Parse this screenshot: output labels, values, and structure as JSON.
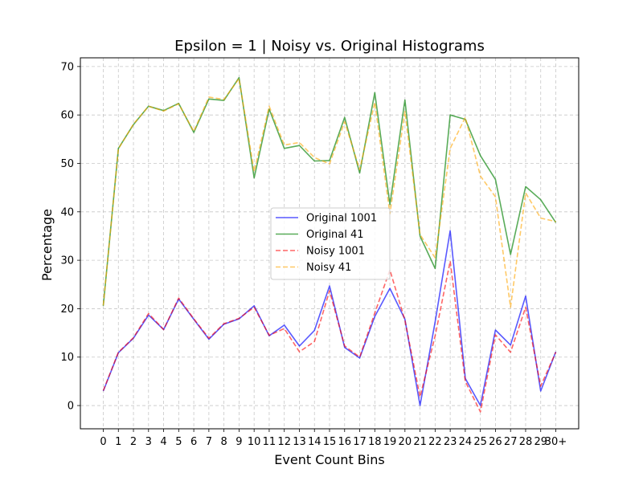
{
  "chart_data": {
    "type": "line",
    "title": "Epsilon = 1 | Noisy vs. Original Histograms",
    "xlabel": "Event Count Bins",
    "ylabel": "Percentage",
    "categories": [
      "0",
      "1",
      "2",
      "3",
      "4",
      "5",
      "6",
      "7",
      "8",
      "9",
      "10",
      "11",
      "12",
      "13",
      "14",
      "15",
      "16",
      "17",
      "18",
      "19",
      "20",
      "21",
      "22",
      "23",
      "24",
      "25",
      "26",
      "27",
      "28",
      "29",
      "30+"
    ],
    "ylim": [
      -4.8,
      71.8
    ],
    "yticks": [
      0,
      10,
      20,
      30,
      40,
      50,
      60,
      70
    ],
    "grid": true,
    "legend_position": "center",
    "series": [
      {
        "name": "Original 1001",
        "color": "#0000ff",
        "dash": "solid",
        "values": [
          3.0,
          10.9,
          13.9,
          18.7,
          15.7,
          22.0,
          17.8,
          13.7,
          16.8,
          17.9,
          20.6,
          14.4,
          16.6,
          12.3,
          15.5,
          24.7,
          12.0,
          9.8,
          18.4,
          24.2,
          17.8,
          0.0,
          17.3,
          36.1,
          5.6,
          0.0,
          15.6,
          12.5,
          22.6,
          3.0,
          11.1
        ]
      },
      {
        "name": "Original 41",
        "color": "#008000",
        "dash": "solid",
        "values": [
          20.6,
          53.1,
          58.0,
          61.8,
          60.9,
          62.4,
          56.4,
          63.3,
          63.0,
          67.7,
          47.0,
          61.2,
          53.1,
          53.7,
          50.5,
          50.6,
          59.5,
          48.0,
          64.6,
          41.5,
          63.1,
          35.0,
          28.3,
          60.0,
          59.1,
          51.6,
          46.7,
          31.2,
          45.2,
          42.5,
          37.8
        ]
      },
      {
        "name": "Noisy 1001",
        "color": "#ff0000",
        "dash": "dashed",
        "values": [
          3.1,
          11.0,
          14.0,
          19.0,
          15.7,
          22.2,
          17.9,
          13.9,
          16.9,
          18.0,
          20.3,
          14.5,
          15.9,
          11.1,
          13.2,
          23.7,
          12.3,
          10.0,
          19.1,
          28.0,
          17.6,
          1.8,
          14.4,
          29.8,
          5.0,
          -1.3,
          14.6,
          11.0,
          20.3,
          4.0,
          11.0
        ]
      },
      {
        "name": "Noisy 41",
        "color": "#ffa500",
        "dash": "dashed",
        "values": [
          20.7,
          53.0,
          58.1,
          61.8,
          60.8,
          62.3,
          56.6,
          63.7,
          63.2,
          67.5,
          48.3,
          61.8,
          53.8,
          54.3,
          51.2,
          49.9,
          58.6,
          48.7,
          62.6,
          39.6,
          60.7,
          35.3,
          30.5,
          53.1,
          59.5,
          47.4,
          43.1,
          20.3,
          43.9,
          38.7,
          38.0
        ]
      }
    ]
  }
}
